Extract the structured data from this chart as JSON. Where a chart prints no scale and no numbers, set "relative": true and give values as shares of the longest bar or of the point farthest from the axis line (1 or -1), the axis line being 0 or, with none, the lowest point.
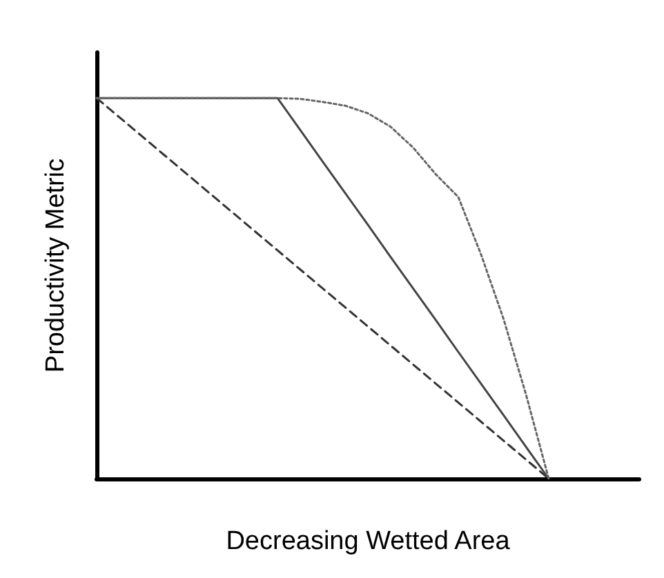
{
  "chart_data": {
    "type": "line",
    "xlabel": "Decreasing Wetted Area",
    "ylabel": "Productivity Metric",
    "relative": true,
    "grid": false,
    "marker": "none",
    "categories": [
      null,
      null,
      null,
      null,
      null,
      null,
      null,
      null,
      null,
      null,
      null,
      null,
      null,
      null,
      null,
      null,
      null,
      null,
      null,
      null,
      null,
      null,
      null,
      null,
      null
    ],
    "series": [
      {
        "color": "#333333",
        "line_style": "dashed",
        "values": [
          1,
          0.95,
          0.9,
          0.85,
          0.8,
          0.75,
          0.7,
          0.65,
          0.6,
          0.55,
          0.5,
          0.45,
          0.4,
          0.35,
          0.3,
          0.25,
          0.2,
          0.15,
          0.1,
          0.05,
          0,
          null,
          null,
          null,
          null
        ]
      },
      {
        "color": "#444444",
        "line_style": "solid",
        "values": [
          1,
          1,
          1,
          1,
          1,
          1,
          1,
          1,
          1,
          0.917,
          0.833,
          0.75,
          0.667,
          0.583,
          0.5,
          0.417,
          0.333,
          0.25,
          0.167,
          0.083,
          0,
          null,
          null,
          null,
          null
        ]
      },
      {
        "color": "#666666",
        "line_style": "dotted",
        "values": [
          1,
          1,
          1,
          1,
          1,
          1,
          1,
          1,
          1,
          0.998,
          0.99,
          0.98,
          0.96,
          0.925,
          0.87,
          0.8,
          0.74,
          0.59,
          0.42,
          0.22,
          0,
          null,
          null,
          null,
          null
        ]
      }
    ]
  }
}
